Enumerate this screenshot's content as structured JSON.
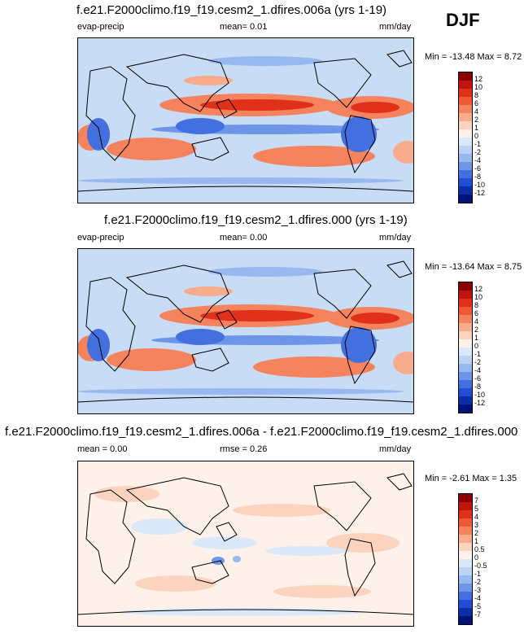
{
  "season": "DJF",
  "panels": [
    {
      "title": "f.e21.F2000climo.f19_f19.cesm2_1.dfires.006a (yrs 1-19)",
      "left_label": "evap-precip",
      "center_label": "mean=  0.01",
      "units": "mm/day",
      "minmax": "Min = -13.48 Max =   8.72",
      "colorbar": {
        "labels": [
          "12",
          "10",
          "8",
          "6",
          "4",
          "2",
          "1",
          "0",
          "-1",
          "-2",
          "-4",
          "-6",
          "-8",
          "-10",
          "-12"
        ],
        "colors": [
          "#8b0000",
          "#c0150f",
          "#e0301a",
          "#ef5a35",
          "#f5845e",
          "#f8ac8c",
          "#fbd3bf",
          "#fdf1ea",
          "#dbe8fa",
          "#bcd3f5",
          "#98b8f0",
          "#6d95e8",
          "#4470df",
          "#214ed4",
          "#0c2fa8",
          "#00137a"
        ]
      },
      "chart_data": {
        "type": "heatmap",
        "title": "f.e21.F2000climo.f19_f19.cesm2_1.dfires.006a (yrs 1-19)",
        "variable": "evap-precip",
        "units": "mm/day",
        "mean": 0.01,
        "min": -13.48,
        "max": 8.72,
        "contour_levels": [
          -12,
          -10,
          -8,
          -6,
          -4,
          -2,
          -1,
          0,
          1,
          2,
          4,
          6,
          8,
          10,
          12
        ]
      }
    },
    {
      "title": "f.e21.F2000climo.f19_f19.cesm2_1.dfires.000 (yrs 1-19)",
      "left_label": "evap-precip",
      "center_label": "mean=  0.00",
      "units": "mm/day",
      "minmax": "Min = -13.64 Max =   8.75",
      "colorbar": {
        "labels": [
          "12",
          "10",
          "8",
          "6",
          "4",
          "2",
          "1",
          "0",
          "-1",
          "-2",
          "-4",
          "-6",
          "-8",
          "-10",
          "-12"
        ],
        "colors": [
          "#8b0000",
          "#c0150f",
          "#e0301a",
          "#ef5a35",
          "#f5845e",
          "#f8ac8c",
          "#fbd3bf",
          "#fdf1ea",
          "#dbe8fa",
          "#bcd3f5",
          "#98b8f0",
          "#6d95e8",
          "#4470df",
          "#214ed4",
          "#0c2fa8",
          "#00137a"
        ]
      },
      "chart_data": {
        "type": "heatmap",
        "title": "f.e21.F2000climo.f19_f19.cesm2_1.dfires.000 (yrs 1-19)",
        "variable": "evap-precip",
        "units": "mm/day",
        "mean": 0.0,
        "min": -13.64,
        "max": 8.75,
        "contour_levels": [
          -12,
          -10,
          -8,
          -6,
          -4,
          -2,
          -1,
          0,
          1,
          2,
          4,
          6,
          8,
          10,
          12
        ]
      }
    },
    {
      "title": "f.e21.F2000climo.f19_f19.cesm2_1.dfires.006a - f.e21.F2000climo.f19_f19.cesm2_1.dfires.000",
      "left_label": "mean =   0.00",
      "center_label": "rmse =   0.26",
      "units": "mm/day",
      "minmax": "Min = -2.61 Max =   1.35",
      "colorbar": {
        "labels": [
          "7",
          "5",
          "4",
          "3",
          "2",
          "1",
          "0.5",
          "0",
          "-0.5",
          "-1",
          "-2",
          "-3",
          "-4",
          "-5",
          "-7"
        ],
        "colors": [
          "#8b0000",
          "#c0150f",
          "#e0301a",
          "#ef5a35",
          "#f5845e",
          "#f8ac8c",
          "#fbd3bf",
          "#fdf1ea",
          "#dbe8fa",
          "#bcd3f5",
          "#98b8f0",
          "#6d95e8",
          "#4470df",
          "#214ed4",
          "#0c2fa8",
          "#00137a"
        ]
      },
      "chart_data": {
        "type": "heatmap",
        "title": "f.e21.F2000climo.f19_f19.cesm2_1.dfires.006a - f.e21.F2000climo.f19_f19.cesm2_1.dfires.000",
        "variable": "evap-precip difference",
        "units": "mm/day",
        "mean": 0.0,
        "rmse": 0.26,
        "min": -2.61,
        "max": 1.35,
        "contour_levels": [
          -7,
          -5,
          -4,
          -3,
          -2,
          -1,
          -0.5,
          0,
          0.5,
          1,
          2,
          3,
          4,
          5,
          7
        ]
      }
    }
  ]
}
